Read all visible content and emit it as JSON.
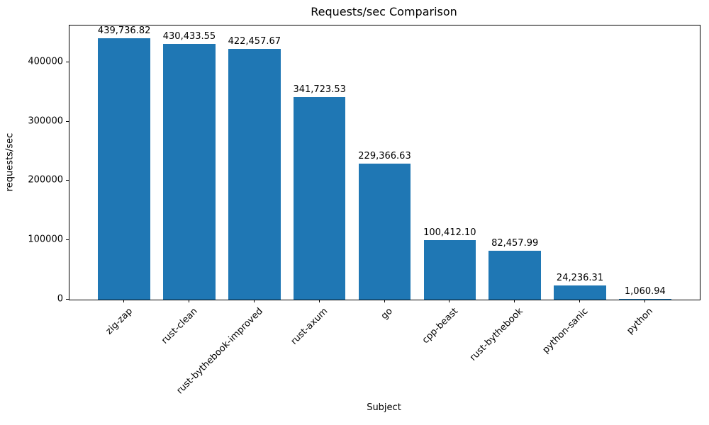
{
  "chart_data": {
    "type": "bar",
    "title": "Requests/sec Comparison",
    "xlabel": "Subject",
    "ylabel": "requests/sec",
    "categories": [
      "zig-zap",
      "rust-clean",
      "rust-bythebook-improved",
      "rust-axum",
      "go",
      "cpp-beast",
      "rust-bythebook",
      "python-sanic",
      "python"
    ],
    "values": [
      439736.82,
      430433.55,
      422457.67,
      341723.53,
      229366.63,
      100412.1,
      82457.99,
      24236.31,
      1060.94
    ],
    "value_labels": [
      "439,736.82",
      "430,433.55",
      "422,457.67",
      "341,723.53",
      "229,366.63",
      "100,412.10",
      "82,457.99",
      "24,236.31",
      "1,060.94"
    ],
    "yticks": [
      {
        "value": 0,
        "label": "0"
      },
      {
        "value": 100000,
        "label": "100000"
      },
      {
        "value": 200000,
        "label": "200000"
      },
      {
        "value": 300000,
        "label": "300000"
      },
      {
        "value": 400000,
        "label": "400000"
      }
    ],
    "ylim": [
      0,
      461723.66
    ],
    "bar_color": "#1f77b4",
    "grid": false,
    "legend_position": "none"
  }
}
